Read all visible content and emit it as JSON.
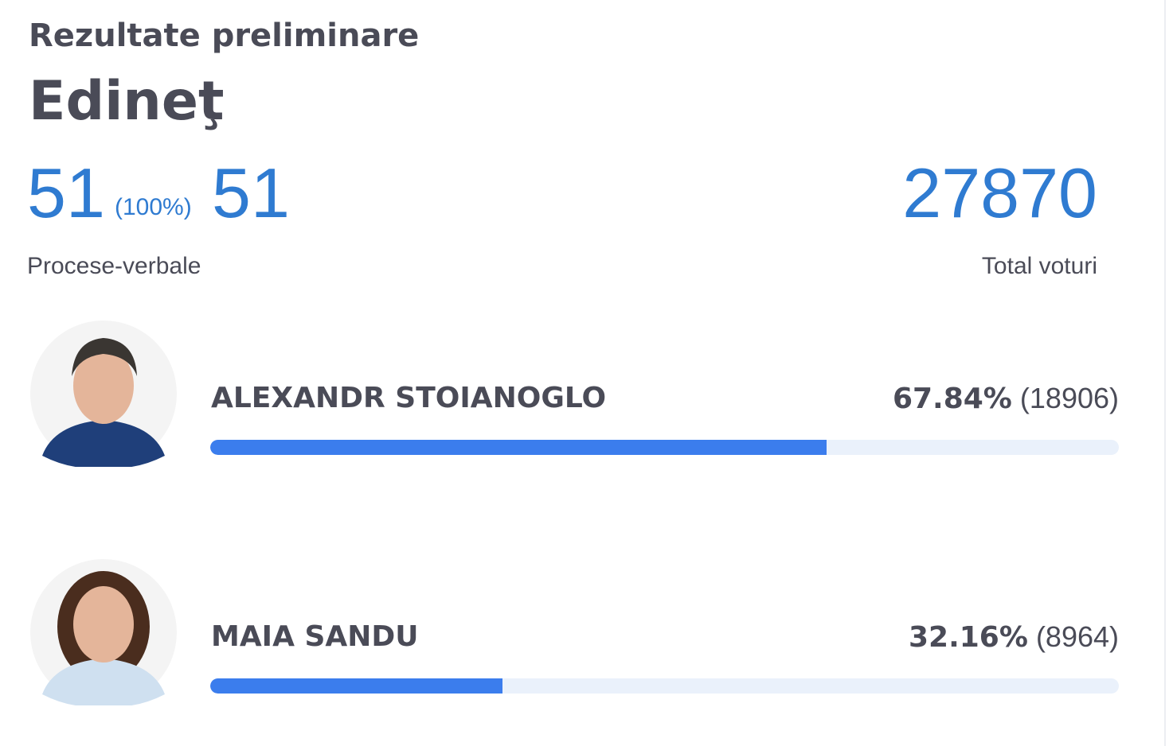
{
  "header": {
    "title": "Rezultate preliminare",
    "region": "Edineţ"
  },
  "stats": {
    "processed": 51,
    "processed_pct_label": "(100%)",
    "total_reports": 51,
    "reports_label": "Procese-verbale",
    "total_votes": 27870,
    "total_votes_label": "Total voturi"
  },
  "candidates": [
    {
      "name": "ALEXANDR STOIANOGLO",
      "percent_label": "67.84%",
      "votes": 18906,
      "votes_label": "(18906)"
    },
    {
      "name": "MAIA SANDU",
      "percent_label": "32.16%",
      "votes": 8964,
      "votes_label": "(8964)"
    }
  ]
}
